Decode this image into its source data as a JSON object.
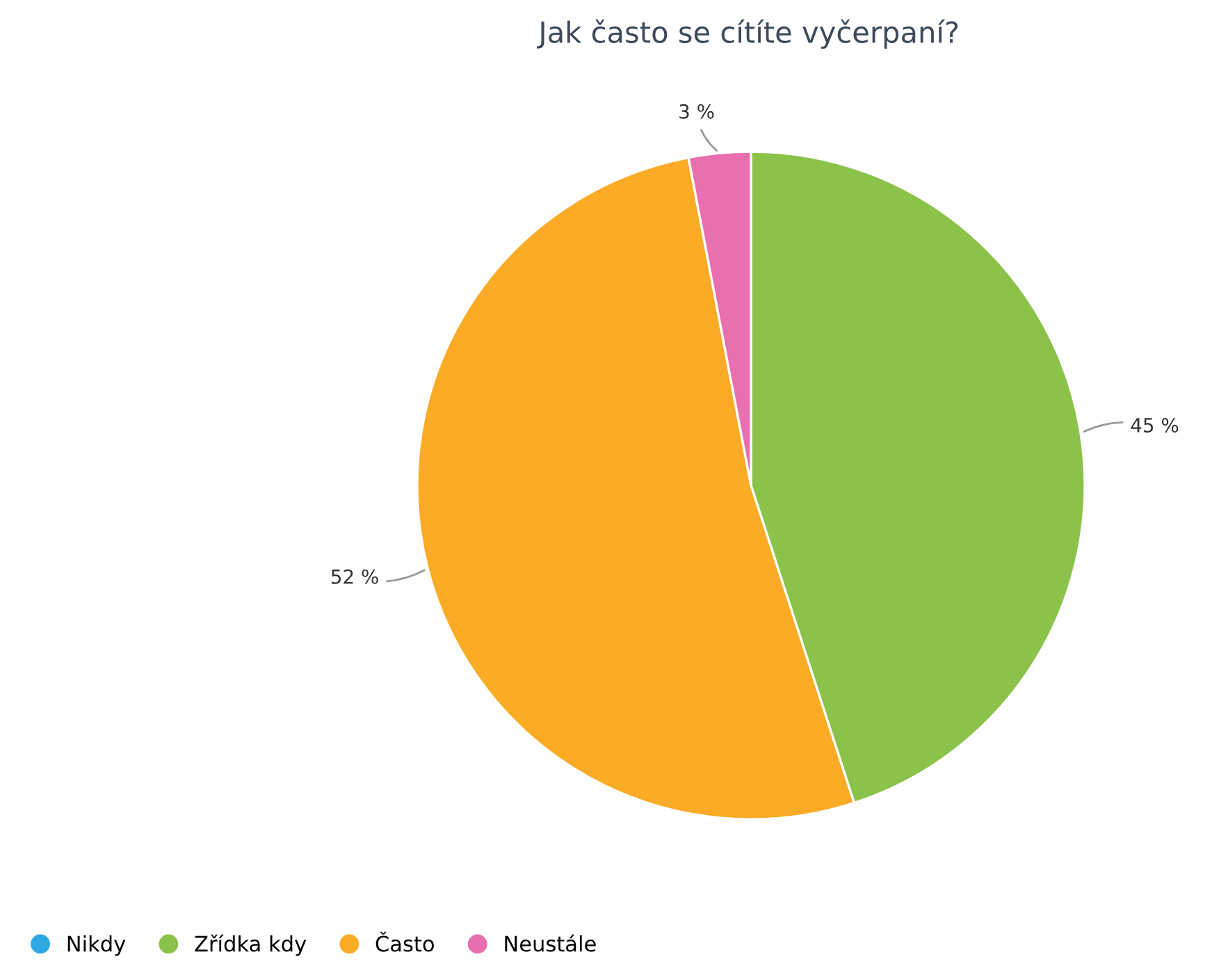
{
  "chart_data": {
    "type": "pie",
    "title": "Jak často se cítíte vyčerpaní?",
    "categories": [
      "Nikdy",
      "Zřídka kdy",
      "Často",
      "Neustále"
    ],
    "values": [
      0,
      45,
      52,
      3
    ],
    "colors": [
      "#2ea8e0",
      "#8bc34a",
      "#fbab26",
      "#e96fae"
    ],
    "value_labels": [
      null,
      "45 %",
      "52 %",
      "3 %"
    ],
    "legend": "bottom left"
  }
}
